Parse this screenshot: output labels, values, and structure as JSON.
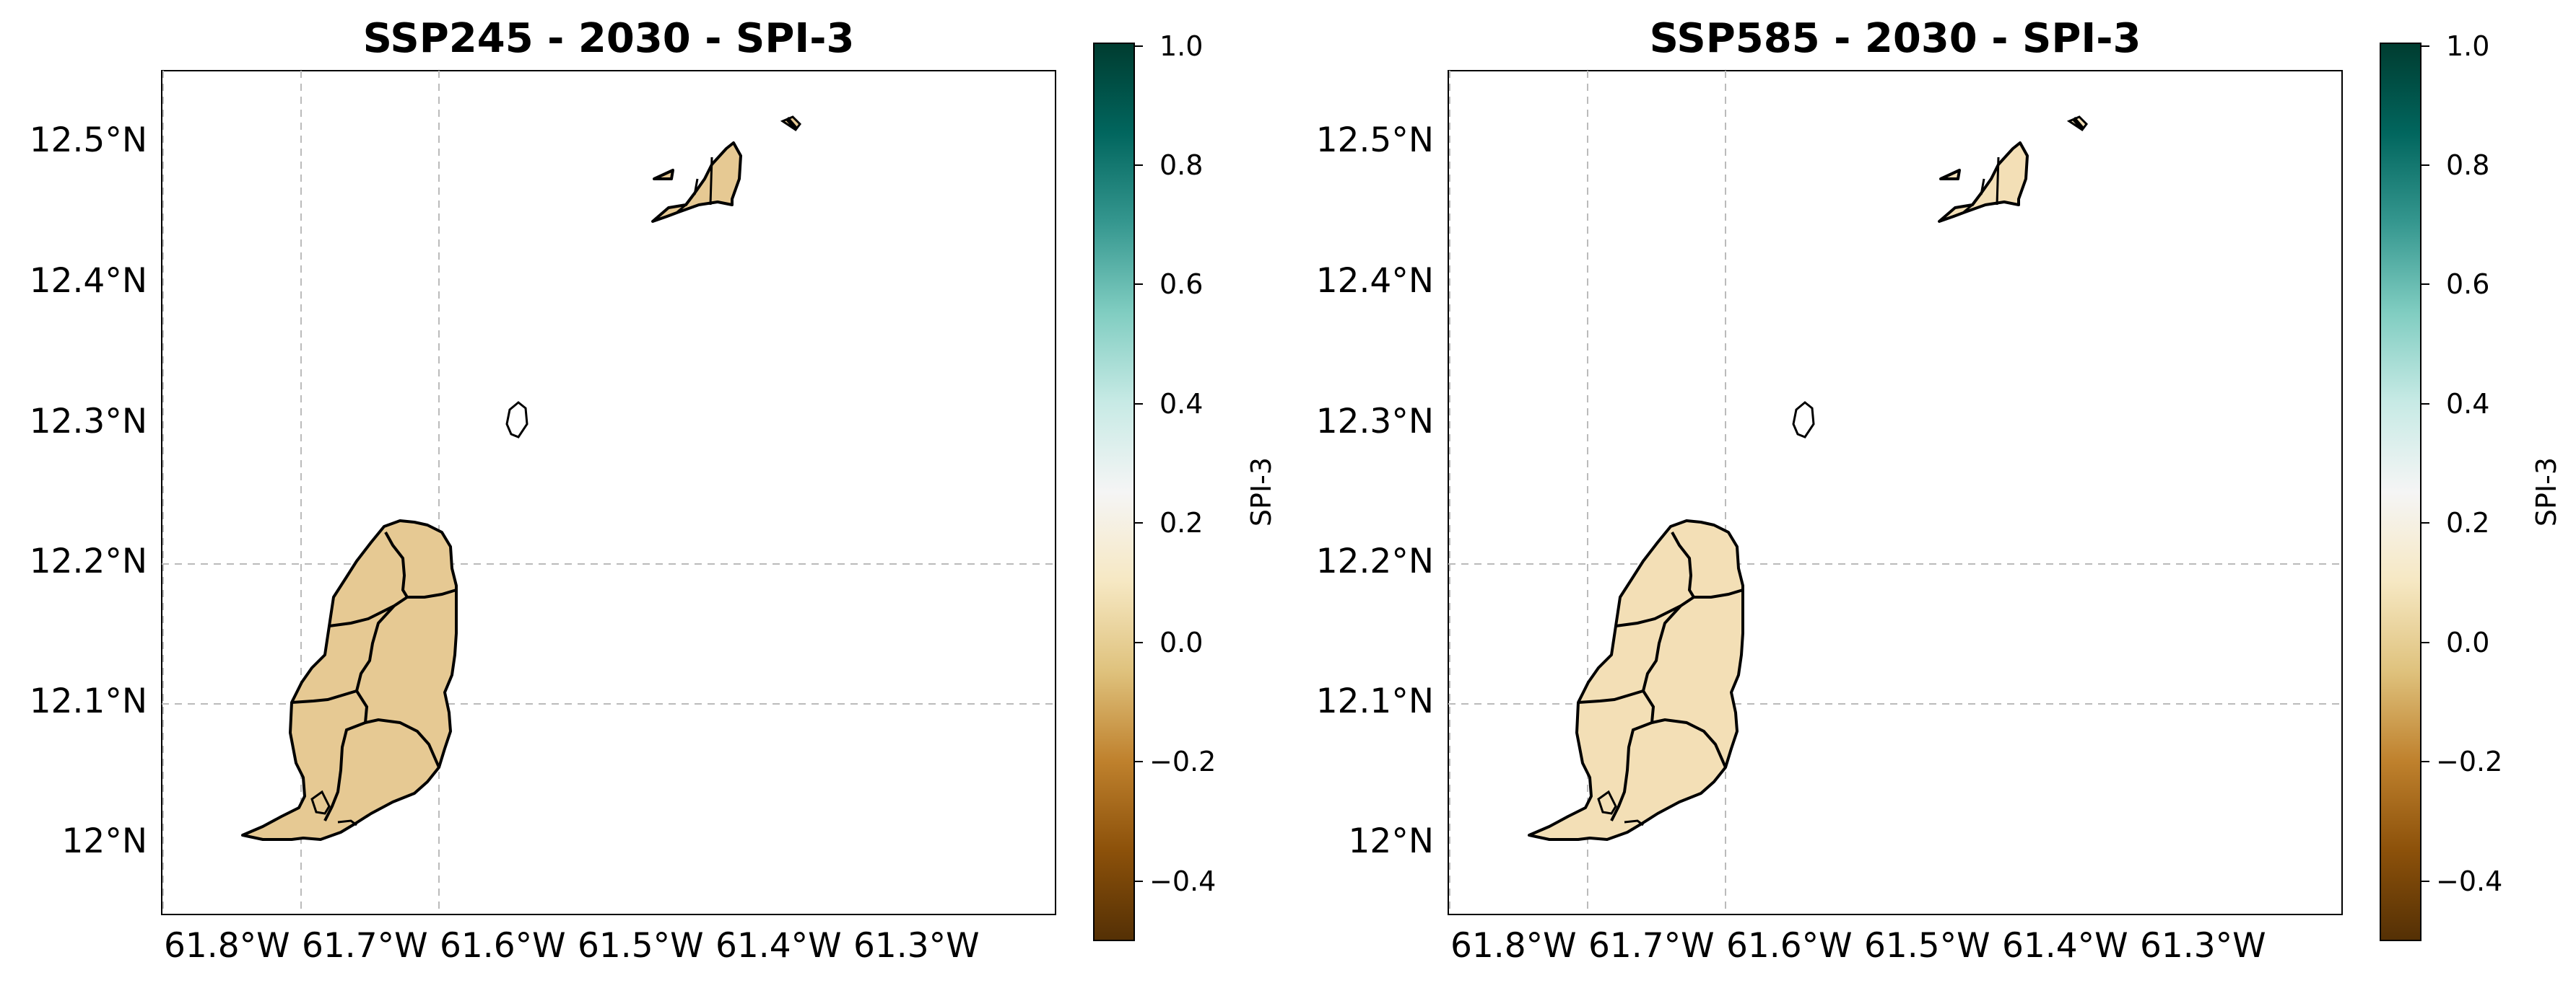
{
  "panels": [
    {
      "title": "SSP245 - 2030 - SPI-3",
      "fill_color": "#e6c993",
      "colorbar_label": "SPI-3"
    },
    {
      "title": "SSP585 - 2030 - SPI-3",
      "fill_color": "#f3dfb6",
      "colorbar_label": "SPI-3"
    }
  ],
  "map": {
    "lat_ticks": [
      "12.5°N",
      "12.4°N",
      "12.3°N",
      "12.2°N",
      "12.1°N",
      "12°N"
    ],
    "lon_ticks": [
      "61.8°W",
      "61.7°W",
      "61.6°W",
      "61.5°W",
      "61.4°W",
      "61.3°W"
    ],
    "colorbar_ticks": [
      "1.0",
      "0.8",
      "0.6",
      "0.4",
      "0.2",
      "0.0",
      "−0.2",
      "−0.4"
    ],
    "colorbar_range": [
      -0.5,
      1.0
    ],
    "colormap": "BrBG",
    "grid": true
  }
}
